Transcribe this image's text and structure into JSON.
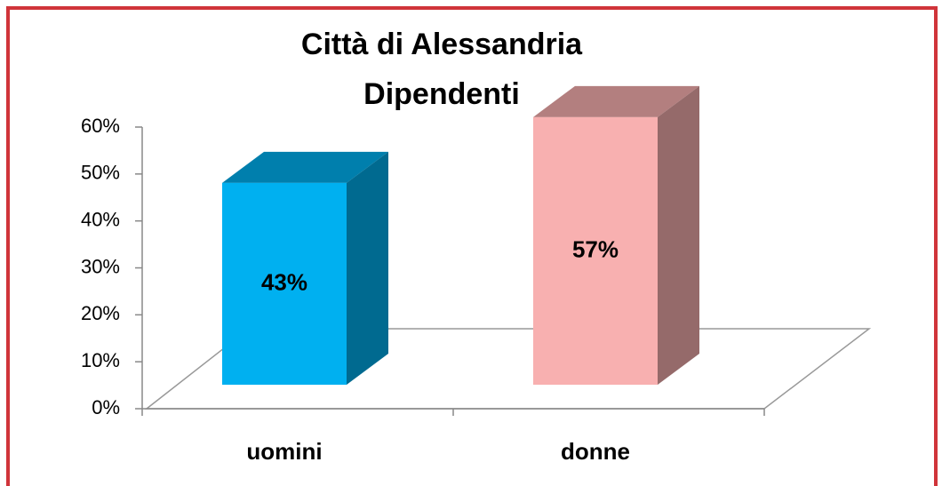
{
  "chart_data": {
    "type": "bar3d",
    "title": [
      "Città di Alessandria",
      "Dipendenti"
    ],
    "categories": [
      "uomini",
      "donne"
    ],
    "values": [
      43,
      57
    ],
    "value_labels": [
      "43%",
      "57%"
    ],
    "colors": [
      "#00b0f0",
      "#f8b0b0"
    ],
    "ylim": [
      0,
      60
    ],
    "yticks": [
      {
        "value": 0,
        "label": "0%"
      },
      {
        "value": 10,
        "label": "10%"
      },
      {
        "value": 20,
        "label": "20%"
      },
      {
        "value": 30,
        "label": "30%"
      },
      {
        "value": 40,
        "label": "40%"
      },
      {
        "value": 50,
        "label": "50%"
      },
      {
        "value": 60,
        "label": "60%"
      }
    ],
    "grid": false
  }
}
